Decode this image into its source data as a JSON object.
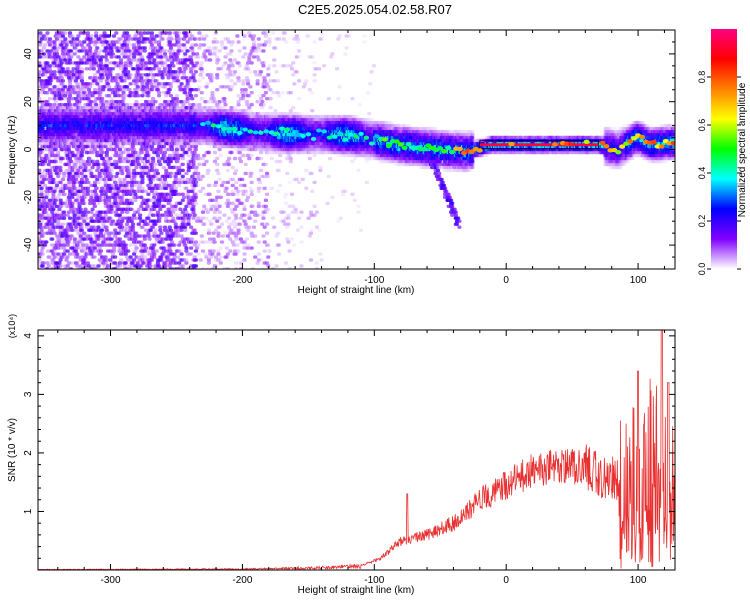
{
  "title": "C2E5.2025.054.02.58.R07",
  "chart_data": [
    {
      "type": "heatmap",
      "title": "C2E5.2025.054.02.58.R07",
      "xlabel": "Height of straight line (km)",
      "ylabel": "Frequency (Hz)",
      "xlim": [
        -355,
        128
      ],
      "ylim": [
        -50,
        50
      ],
      "xticks": [
        -300,
        -200,
        -100,
        0,
        100
      ],
      "yticks": [
        -40,
        -20,
        0,
        20,
        40
      ],
      "x_tick_labels": [
        "-300",
        "-200",
        "-100",
        "0",
        "100"
      ],
      "y_tick_labels": [
        "-40",
        "-20",
        "0",
        "20",
        "40"
      ],
      "grid": false,
      "colorbar": {
        "label": "Normalized spectral amplitude",
        "range": [
          0,
          1
        ],
        "ticks": [
          0.0,
          0.2,
          0.4,
          0.6,
          0.8
        ],
        "tick_labels": [
          "0.0",
          "0.2",
          "0.4",
          "0.6",
          "0.8"
        ],
        "colormap": [
          "#ffffff",
          "#8000ff",
          "#0000ff",
          "#00ffff",
          "#00ff00",
          "#ffff00",
          "#ff8000",
          "#ff0000",
          "#ff0080"
        ]
      },
      "ridge": {
        "description_points": [
          {
            "x": -230,
            "y": 10
          },
          {
            "x": -180,
            "y": 7
          },
          {
            "x": -120,
            "y": 6
          },
          {
            "x": -80,
            "y": 2
          },
          {
            "x": -50,
            "y": 0
          },
          {
            "x": -30,
            "y": -1
          },
          {
            "x": -10,
            "y": 2
          },
          {
            "x": 0,
            "y": 2
          },
          {
            "x": 50,
            "y": 2
          },
          {
            "x": 70,
            "y": 2
          },
          {
            "x": 85,
            "y": 0
          },
          {
            "x": 100,
            "y": 5
          },
          {
            "x": 110,
            "y": 2
          },
          {
            "x": 128,
            "y": 3
          }
        ],
        "flat_segment": {
          "x_start": -20,
          "x_end": 70,
          "y": 2
        }
      }
    },
    {
      "type": "line",
      "xlabel": "Height of straight line (km)",
      "ylabel": "SNR (10 * v/v)",
      "y_scale_label": "(x10⁴)",
      "xlim": [
        -355,
        128
      ],
      "ylim": [
        0,
        4.1
      ],
      "xticks": [
        -300,
        -200,
        -100,
        0,
        100
      ],
      "yticks": [
        1,
        2,
        3,
        4
      ],
      "x_tick_labels": [
        "-300",
        "-200",
        "-100",
        "0",
        "100"
      ],
      "y_tick_labels": [
        "1",
        "2",
        "3",
        "4"
      ],
      "grid": false,
      "line_color": "#e83030",
      "envelope": [
        {
          "x": -355,
          "y": 0.01
        },
        {
          "x": -200,
          "y": 0.02
        },
        {
          "x": -150,
          "y": 0.04
        },
        {
          "x": -110,
          "y": 0.08
        },
        {
          "x": -95,
          "y": 0.2
        },
        {
          "x": -80,
          "y": 0.5
        },
        {
          "x": -60,
          "y": 0.6
        },
        {
          "x": -40,
          "y": 0.8
        },
        {
          "x": -20,
          "y": 1.2
        },
        {
          "x": 0,
          "y": 1.45
        },
        {
          "x": 20,
          "y": 1.7
        },
        {
          "x": 40,
          "y": 1.8
        },
        {
          "x": 60,
          "y": 1.75
        },
        {
          "x": 75,
          "y": 1.6
        },
        {
          "x": 90,
          "y": 1.6
        },
        {
          "x": 100,
          "y": 1.8
        },
        {
          "x": 110,
          "y": 2.0
        },
        {
          "x": 120,
          "y": 1.8
        },
        {
          "x": 128,
          "y": 1.6
        }
      ],
      "peaks": [
        {
          "x": -75,
          "y": 1.3
        },
        {
          "x": 100,
          "y": 3.4
        },
        {
          "x": 118,
          "y": 4.1
        },
        {
          "x": 123,
          "y": 3.2
        }
      ]
    }
  ]
}
